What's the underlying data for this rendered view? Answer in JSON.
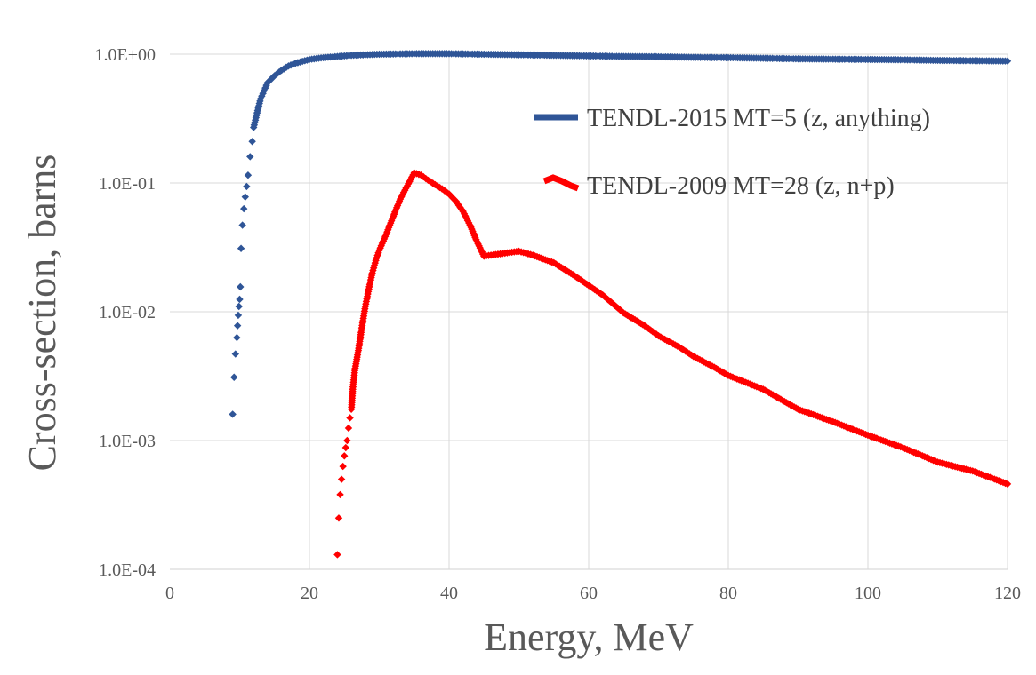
{
  "chart_data": {
    "type": "scatter",
    "title": "",
    "xlabel": "Energy, MeV",
    "ylabel": "Cross-section, barns",
    "xlim": [
      0,
      120
    ],
    "ylim": [
      0.0001,
      1.0
    ],
    "y_scale": "log",
    "grid": true,
    "legend_position": "top-right",
    "x_ticks": [
      0,
      20,
      40,
      60,
      80,
      100,
      120
    ],
    "x_tick_labels": [
      "0",
      "20",
      "40",
      "60",
      "80",
      "100",
      "120"
    ],
    "y_ticks": [
      0.0001,
      0.001,
      0.01,
      0.1,
      1.0
    ],
    "y_tick_labels": [
      "1.0E-04",
      "1.0E-03",
      "1.0E-02",
      "1.0E-01",
      "1.0E+00"
    ],
    "series": [
      {
        "name": "TENDL-2015 MT=5 (z, anything)",
        "color": "#2F5597",
        "marker": "diamond",
        "points": [
          [
            9.0,
            0.0016
          ],
          [
            9.2,
            0.0031
          ],
          [
            9.4,
            0.0047
          ],
          [
            9.6,
            0.0063
          ],
          [
            9.7,
            0.0078
          ],
          [
            9.8,
            0.0094
          ],
          [
            9.9,
            0.011
          ],
          [
            10.0,
            0.0125
          ],
          [
            10.1,
            0.0156
          ],
          [
            10.2,
            0.031
          ],
          [
            10.4,
            0.047
          ],
          [
            10.6,
            0.063
          ],
          [
            10.8,
            0.078
          ],
          [
            11.0,
            0.094
          ],
          [
            11.2,
            0.115
          ],
          [
            11.5,
            0.16
          ],
          [
            11.8,
            0.21
          ],
          [
            12.0,
            0.27
          ],
          [
            12.5,
            0.35
          ],
          [
            13.0,
            0.45
          ],
          [
            13.5,
            0.52
          ],
          [
            14.0,
            0.6
          ],
          [
            15.0,
            0.68
          ],
          [
            16.0,
            0.75
          ],
          [
            17.0,
            0.81
          ],
          [
            18.0,
            0.85
          ],
          [
            19.0,
            0.88
          ],
          [
            20.0,
            0.91
          ],
          [
            22.0,
            0.94
          ],
          [
            24.0,
            0.96
          ],
          [
            26.0,
            0.98
          ],
          [
            28.0,
            0.99
          ],
          [
            30.0,
            1.0
          ],
          [
            35.0,
            1.01
          ],
          [
            40.0,
            1.01
          ],
          [
            45.0,
            1.0
          ],
          [
            50.0,
            0.99
          ],
          [
            55.0,
            0.98
          ],
          [
            60.0,
            0.97
          ],
          [
            65.0,
            0.96
          ],
          [
            70.0,
            0.955
          ],
          [
            75.0,
            0.945
          ],
          [
            80.0,
            0.94
          ],
          [
            85.0,
            0.93
          ],
          [
            90.0,
            0.92
          ],
          [
            95.0,
            0.915
          ],
          [
            100.0,
            0.91
          ],
          [
            105.0,
            0.905
          ],
          [
            110.0,
            0.895
          ],
          [
            115.0,
            0.89
          ],
          [
            120.0,
            0.885
          ]
        ]
      },
      {
        "name": "TENDL-2009 MT=28 (z, n+p)",
        "color": "#FF0000",
        "marker": "diamond",
        "points": [
          [
            24.0,
            0.00013
          ],
          [
            24.2,
            0.00025
          ],
          [
            24.4,
            0.00038
          ],
          [
            24.6,
            0.0005
          ],
          [
            24.8,
            0.00063
          ],
          [
            25.0,
            0.00076
          ],
          [
            25.2,
            0.00088
          ],
          [
            25.4,
            0.001
          ],
          [
            25.6,
            0.00125
          ],
          [
            25.8,
            0.0015
          ],
          [
            26.0,
            0.00175
          ],
          [
            26.2,
            0.0025
          ],
          [
            26.5,
            0.0035
          ],
          [
            27.0,
            0.005
          ],
          [
            27.5,
            0.0075
          ],
          [
            28.0,
            0.011
          ],
          [
            28.5,
            0.015
          ],
          [
            29.0,
            0.02
          ],
          [
            29.5,
            0.025
          ],
          [
            30.0,
            0.03
          ],
          [
            31.0,
            0.04
          ],
          [
            32.0,
            0.055
          ],
          [
            33.0,
            0.075
          ],
          [
            34.0,
            0.095
          ],
          [
            35.0,
            0.12
          ],
          [
            36.0,
            0.115
          ],
          [
            37.0,
            0.105
          ],
          [
            38.0,
            0.097
          ],
          [
            39.0,
            0.09
          ],
          [
            40.0,
            0.082
          ],
          [
            41.0,
            0.072
          ],
          [
            42.0,
            0.06
          ],
          [
            43.0,
            0.047
          ],
          [
            44.0,
            0.035
          ],
          [
            45.0,
            0.027
          ],
          [
            46.0,
            0.0275
          ],
          [
            47.0,
            0.028
          ],
          [
            48.0,
            0.0285
          ],
          [
            49.0,
            0.029
          ],
          [
            50.0,
            0.0295
          ],
          [
            52.0,
            0.0275
          ],
          [
            55.0,
            0.024
          ],
          [
            58.0,
            0.019
          ],
          [
            60.0,
            0.016
          ],
          [
            62.0,
            0.0135
          ],
          [
            65.0,
            0.0098
          ],
          [
            68.0,
            0.0078
          ],
          [
            70.0,
            0.0065
          ],
          [
            73.0,
            0.0053
          ],
          [
            75.0,
            0.0045
          ],
          [
            78.0,
            0.0037
          ],
          [
            80.0,
            0.0032
          ],
          [
            85.0,
            0.0025
          ],
          [
            90.0,
            0.00175
          ],
          [
            95.0,
            0.0014
          ],
          [
            100.0,
            0.0011
          ],
          [
            105.0,
            0.00088
          ],
          [
            110.0,
            0.00068
          ],
          [
            115.0,
            0.00058
          ],
          [
            120.0,
            0.00046
          ]
        ]
      }
    ]
  }
}
